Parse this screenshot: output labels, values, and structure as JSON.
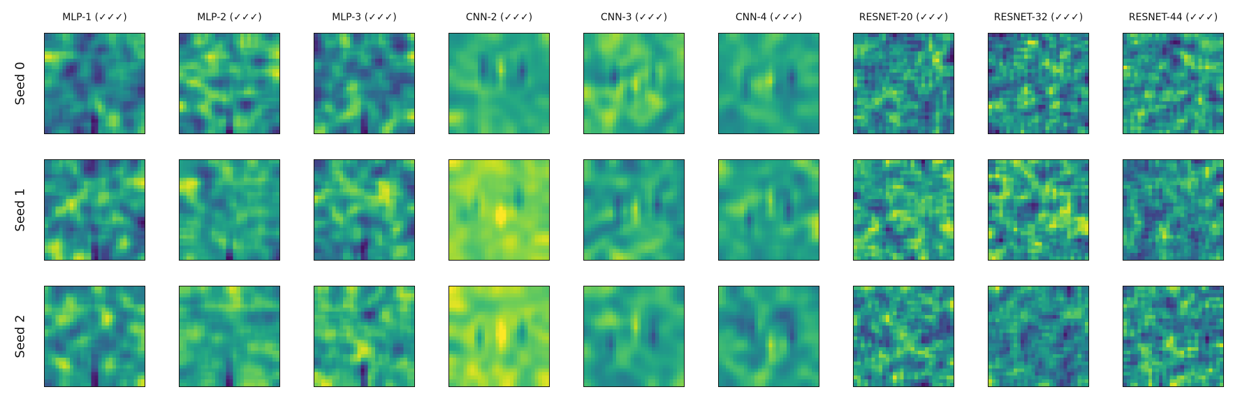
{
  "chart_data": {
    "type": "heatmap",
    "colormap": "viridis",
    "axes_ticks": "hidden",
    "columns": [
      {
        "title": "MLP-1 (✓✓✓)",
        "family": "mlp"
      },
      {
        "title": "MLP-2 (✓✓✓)",
        "family": "mlp"
      },
      {
        "title": "MLP-3 (✓✓✓)",
        "family": "mlp"
      },
      {
        "title": "CNN-2 (✓✓✓)",
        "family": "cnn"
      },
      {
        "title": "CNN-3 (✓✓✓)",
        "family": "cnn"
      },
      {
        "title": "CNN-4 (✓✓✓)",
        "family": "cnn"
      },
      {
        "title": "RESNET-20 (✓✓✓)",
        "family": "resnet"
      },
      {
        "title": "RESNET-32 (✓✓✓)",
        "family": "resnet"
      },
      {
        "title": "RESNET-44 (✓✓✓)",
        "family": "resnet"
      }
    ],
    "rows": [
      {
        "label": "Seed 0"
      },
      {
        "label": "Seed 1"
      },
      {
        "label": "Seed 2"
      }
    ]
  }
}
